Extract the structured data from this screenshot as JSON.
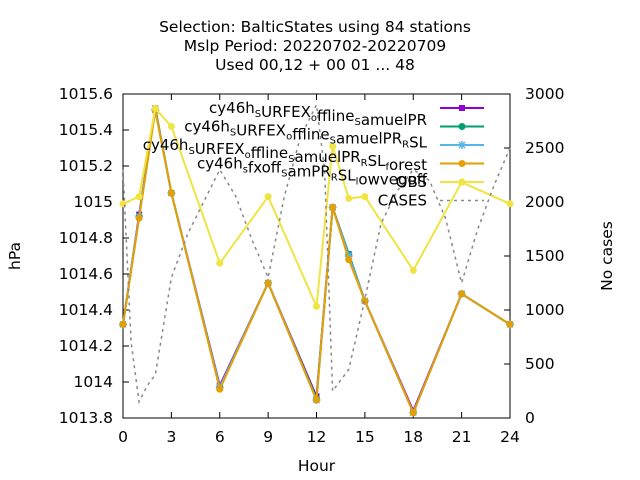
{
  "chart_data": {
    "type": "line",
    "title_lines": [
      "Selection: BalticStates using    84 stations",
      "Mslp   Period: 20220702-20220709",
      "Used  00,12  + 00 01 ... 48"
    ],
    "xlabel": "Hour",
    "ylabel": "hPa",
    "y2label": "No cases",
    "xlim": [
      0,
      24
    ],
    "ylim": [
      1013.8,
      1015.6
    ],
    "y2lim": [
      0,
      3000
    ],
    "x_ticks": [
      "0",
      "3",
      "6",
      "9",
      "12",
      "15",
      "18",
      "21",
      "24"
    ],
    "y_ticks": [
      "1013.8",
      "1014",
      "1014.2",
      "1014.4",
      "1014.6",
      "1014.8",
      "1015",
      "1015.2",
      "1015.4",
      "1015.6"
    ],
    "y2_ticks": [
      "0",
      "500",
      "1000",
      "1500",
      "2000",
      "2500",
      "3000"
    ],
    "legend_position": "top-right",
    "grid": false,
    "x": [
      0,
      1,
      2,
      3,
      6,
      9,
      12,
      13,
      14,
      15,
      18,
      21,
      24
    ],
    "series": [
      {
        "name": "cy46h_SURFEX_offline_SamuelPR",
        "legend_parts": [
          [
            "cy46h",
            ""
          ],
          [
            "S",
            "sub"
          ],
          [
            "URFEX",
            ""
          ],
          [
            "o",
            "sub"
          ],
          [
            "ffline",
            ""
          ],
          [
            "S",
            "sub"
          ],
          [
            "amuelPR",
            ""
          ]
        ],
        "color": "#9400d3",
        "marker": "square",
        "axis": "y",
        "values": [
          1014.32,
          1014.93,
          1015.52,
          1015.05,
          1013.98,
          1014.55,
          1013.92,
          1014.97,
          1014.71,
          1014.45,
          1013.84,
          1014.49,
          1014.32
        ]
      },
      {
        "name": "cy46h_SURFEX_offline_SamuelPR_RSL",
        "legend_parts": [
          [
            "cy46h",
            ""
          ],
          [
            "S",
            "sub"
          ],
          [
            "URFEX",
            ""
          ],
          [
            "o",
            "sub"
          ],
          [
            "ffline",
            ""
          ],
          [
            "S",
            "sub"
          ],
          [
            "amuelPR",
            ""
          ],
          [
            "R",
            "sub"
          ],
          [
            "SL",
            ""
          ]
        ],
        "color": "#009e73",
        "marker": "circle",
        "axis": "y",
        "values": [
          1014.32,
          1014.92,
          1015.52,
          1015.05,
          1013.97,
          1014.55,
          1013.91,
          1014.97,
          1014.71,
          1014.45,
          1013.83,
          1014.49,
          1014.32
        ]
      },
      {
        "name": "cy46h_SURFEX_offline_SamuelPR_RSL_forest",
        "legend_parts": [
          [
            "cy46h",
            ""
          ],
          [
            "S",
            "sub"
          ],
          [
            "URFEX",
            ""
          ],
          [
            "o",
            "sub"
          ],
          [
            "ffline",
            ""
          ],
          [
            "S",
            "sub"
          ],
          [
            "amuelPR",
            ""
          ],
          [
            "R",
            "sub"
          ],
          [
            "SL",
            ""
          ],
          [
            "f",
            "sub"
          ],
          [
            "orest",
            ""
          ]
        ],
        "color": "#56b4e9",
        "marker": "star",
        "axis": "y",
        "values": [
          1014.32,
          1014.92,
          1015.51,
          1015.05,
          1013.97,
          1014.55,
          1013.9,
          1014.97,
          1014.7,
          1014.45,
          1013.83,
          1014.49,
          1014.32
        ]
      },
      {
        "name": "cy46h_sfxoff_SamPR_RSL_lowvegoff",
        "legend_parts": [
          [
            "cy46h",
            ""
          ],
          [
            "s",
            "sub"
          ],
          [
            "fxoff",
            ""
          ],
          [
            "S",
            "sub"
          ],
          [
            "amPR",
            ""
          ],
          [
            "R",
            "sub"
          ],
          [
            "SL",
            ""
          ],
          [
            "l",
            "sub"
          ],
          [
            "owvegoff",
            ""
          ]
        ],
        "color": "#e69f00",
        "marker": "circle",
        "axis": "y",
        "values": [
          1014.32,
          1014.91,
          1015.51,
          1015.05,
          1013.96,
          1014.55,
          1013.9,
          1014.97,
          1014.68,
          1014.45,
          1013.83,
          1014.49,
          1014.32
        ]
      },
      {
        "name": "OBS",
        "legend_parts": [
          [
            "OBS",
            ""
          ]
        ],
        "color": "#f0e442",
        "marker": "circle",
        "axis": "y",
        "values": [
          1014.99,
          1015.03,
          1015.52,
          1015.42,
          1014.66,
          1015.03,
          1014.42,
          1015.31,
          1015.02,
          1015.03,
          1014.62,
          1015.11,
          1014.99
        ]
      },
      {
        "name": "CASES",
        "legend_parts": [
          [
            "CASES",
            ""
          ]
        ],
        "color": "#888888",
        "marker": "none",
        "dashed": true,
        "axis": "y2",
        "x": [
          0,
          0.5,
          1,
          1.5,
          2,
          3,
          4,
          5,
          6,
          7,
          8,
          9,
          10,
          11,
          12,
          12.5,
          13,
          14,
          15,
          16,
          17,
          18,
          19,
          20,
          21,
          22,
          23,
          24
        ],
        "values": [
          2300,
          700,
          150,
          300,
          400,
          1300,
          1700,
          2000,
          2300,
          2050,
          1650,
          1300,
          2050,
          2600,
          2900,
          2300,
          250,
          450,
          1100,
          1800,
          2100,
          2300,
          2200,
          1850,
          1250,
          1750,
          2150,
          2500
        ]
      }
    ]
  }
}
